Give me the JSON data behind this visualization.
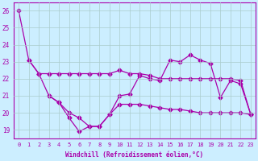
{
  "xlabel": "Windchill (Refroidissement éolien,°C)",
  "background_color": "#cceeff",
  "grid_color": "#aacccc",
  "line_color": "#aa00aa",
  "ylim": [
    18.5,
    26.5
  ],
  "xlim": [
    -0.5,
    23.5
  ],
  "y_ticks": [
    19,
    20,
    21,
    22,
    23,
    24,
    25,
    26
  ],
  "x_ticks": [
    0,
    1,
    2,
    3,
    4,
    5,
    6,
    7,
    8,
    9,
    10,
    11,
    12,
    13,
    14,
    15,
    16,
    17,
    18,
    19,
    20,
    21,
    22,
    23
  ],
  "line1_x": [
    0,
    1,
    2,
    3,
    4,
    5,
    6,
    7,
    8,
    9,
    10,
    11,
    12,
    13,
    14,
    15,
    16,
    17,
    18,
    19,
    20,
    21,
    22,
    23
  ],
  "line1_y": [
    26.0,
    23.1,
    22.3,
    21.0,
    20.6,
    19.7,
    18.9,
    19.2,
    19.2,
    19.9,
    21.0,
    21.1,
    22.2,
    22.0,
    21.9,
    23.1,
    23.0,
    23.4,
    23.1,
    22.9,
    20.9,
    21.9,
    21.7,
    19.9
  ],
  "line2_x": [
    1,
    2,
    3,
    4,
    5,
    6,
    7,
    8,
    9,
    10,
    11,
    12,
    13,
    14,
    15,
    16,
    17,
    18,
    19,
    20,
    21,
    22,
    23
  ],
  "line2_y": [
    23.1,
    22.3,
    22.3,
    22.3,
    22.3,
    22.3,
    22.3,
    22.3,
    22.3,
    22.5,
    22.3,
    22.3,
    22.2,
    22.0,
    22.0,
    22.0,
    22.0,
    22.0,
    22.0,
    22.0,
    22.0,
    21.9,
    19.9
  ],
  "line3_x": [
    3,
    4,
    5,
    6,
    7,
    8,
    9,
    10,
    11,
    12,
    13,
    14,
    15,
    16,
    17,
    18,
    19,
    20,
    21,
    22,
    23
  ],
  "line3_y": [
    21.0,
    20.6,
    20.0,
    19.7,
    19.2,
    19.2,
    19.9,
    20.5,
    20.5,
    20.5,
    20.4,
    20.3,
    20.2,
    20.2,
    20.1,
    20.0,
    20.0,
    20.0,
    20.0,
    20.0,
    19.9
  ]
}
